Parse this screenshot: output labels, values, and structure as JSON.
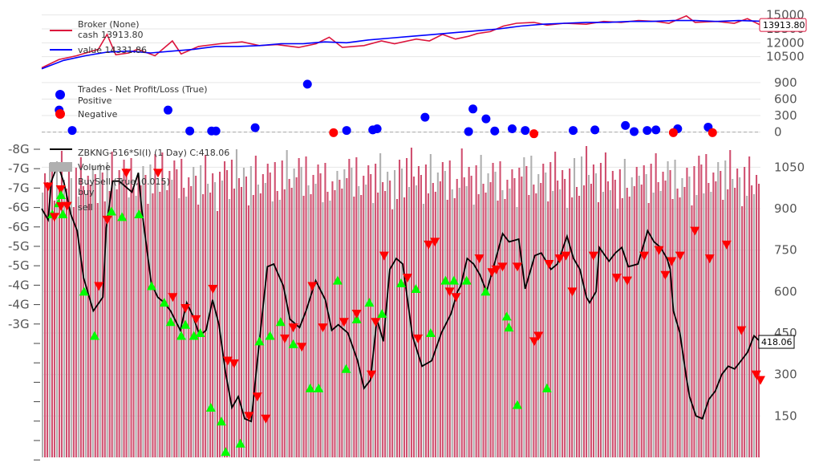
{
  "chart_data": [
    {
      "panel": "broker",
      "type": "line",
      "legend": [
        {
          "name": "Broker (None)",
          "detail": "cash 13913.80",
          "color": "#dc143c"
        },
        {
          "name": "value 14331.86",
          "color": "#0000ff"
        }
      ],
      "last_label": "13913.80",
      "overlap_label": "14331.86",
      "yticks": [
        "15000",
        "13500",
        "12000",
        "10500"
      ],
      "ylim": [
        9000,
        15400
      ],
      "series": [
        {
          "name": "cash",
          "color": "#dc143c",
          "points": [
            [
              0,
              9300
            ],
            [
              8,
              10200
            ],
            [
              16,
              10600
            ],
            [
              26,
              11300
            ],
            [
              30,
              12900
            ],
            [
              34,
              10700
            ],
            [
              40,
              10900
            ],
            [
              44,
              11300
            ],
            [
              52,
              10600
            ],
            [
              60,
              12200
            ],
            [
              64,
              10800
            ],
            [
              72,
              11600
            ],
            [
              82,
              11900
            ],
            [
              92,
              12100
            ],
            [
              100,
              11700
            ],
            [
              108,
              11800
            ],
            [
              118,
              11500
            ],
            [
              126,
              11900
            ],
            [
              132,
              12600
            ],
            [
              138,
              11500
            ],
            [
              148,
              11700
            ],
            [
              156,
              12200
            ],
            [
              162,
              11900
            ],
            [
              172,
              12400
            ],
            [
              178,
              12200
            ],
            [
              184,
              12900
            ],
            [
              190,
              12400
            ],
            [
              196,
              12700
            ],
            [
              200,
              13000
            ],
            [
              206,
              13200
            ],
            [
              212,
              13800
            ],
            [
              218,
              14100
            ],
            [
              226,
              14200
            ],
            [
              232,
              13900
            ],
            [
              240,
              14100
            ],
            [
              250,
              14000
            ],
            [
              258,
              14300
            ],
            [
              266,
              14200
            ],
            [
              274,
              14400
            ],
            [
              282,
              14300
            ],
            [
              288,
              14100
            ],
            [
              296,
              14900
            ],
            [
              300,
              14200
            ],
            [
              310,
              14300
            ],
            [
              318,
              14100
            ],
            [
              324,
              14600
            ],
            [
              330,
              13913.8
            ]
          ]
        },
        {
          "name": "value",
          "color": "#0000ff",
          "points": [
            [
              0,
              9200
            ],
            [
              10,
              10100
            ],
            [
              20,
              10600
            ],
            [
              30,
              11000
            ],
            [
              40,
              11100
            ],
            [
              50,
              10900
            ],
            [
              60,
              11100
            ],
            [
              70,
              11300
            ],
            [
              80,
              11600
            ],
            [
              90,
              11600
            ],
            [
              100,
              11700
            ],
            [
              110,
              11900
            ],
            [
              120,
              11900
            ],
            [
              130,
              12100
            ],
            [
              140,
              12000
            ],
            [
              150,
              12300
            ],
            [
              160,
              12500
            ],
            [
              170,
              12700
            ],
            [
              180,
              12900
            ],
            [
              190,
              13100
            ],
            [
              200,
              13300
            ],
            [
              210,
              13500
            ],
            [
              220,
              13800
            ],
            [
              230,
              14000
            ],
            [
              240,
              14100
            ],
            [
              250,
              14200
            ],
            [
              260,
              14200
            ],
            [
              270,
              14300
            ],
            [
              280,
              14300
            ],
            [
              290,
              14400
            ],
            [
              300,
              14400
            ],
            [
              310,
              14300
            ],
            [
              320,
              14400
            ],
            [
              330,
              14331.86
            ]
          ]
        }
      ]
    },
    {
      "panel": "trades",
      "type": "scatter",
      "legend_title": "Trades - Net Profit/Loss (True)",
      "legend": [
        {
          "name": "Positive",
          "color": "#0000ff"
        },
        {
          "name": "Negative",
          "color": "#ff0000"
        }
      ],
      "yticks": [
        "900",
        "600",
        "300",
        "0"
      ],
      "ylim": [
        -20,
        1000
      ],
      "positive": [
        [
          8,
          400
        ],
        [
          14,
          30
        ],
        [
          58,
          400
        ],
        [
          68,
          20
        ],
        [
          78,
          20
        ],
        [
          80,
          20
        ],
        [
          98,
          80
        ],
        [
          122,
          870
        ],
        [
          140,
          30
        ],
        [
          152,
          40
        ],
        [
          154,
          60
        ],
        [
          176,
          270
        ],
        [
          196,
          10
        ],
        [
          198,
          420
        ],
        [
          204,
          240
        ],
        [
          208,
          20
        ],
        [
          216,
          60
        ],
        [
          222,
          30
        ],
        [
          244,
          30
        ],
        [
          254,
          40
        ],
        [
          268,
          120
        ],
        [
          272,
          10
        ],
        [
          278,
          30
        ],
        [
          282,
          40
        ],
        [
          292,
          60
        ],
        [
          306,
          90
        ]
      ],
      "negative": [
        [
          134,
          -10
        ],
        [
          226,
          -30
        ],
        [
          290,
          -10
        ],
        [
          308,
          -10
        ]
      ]
    },
    {
      "panel": "price",
      "type": "line",
      "legend": [
        {
          "name": "ZBKNG-516*SI(I) (1 Day) C:418.06",
          "color": "#000000"
        },
        {
          "name": "Volume",
          "color": "#b0b0b0"
        },
        {
          "name": "BuySell (True, 0.015)",
          "color": "#000000"
        },
        {
          "name": "buy",
          "color": "#00ff00"
        },
        {
          "name": "sell",
          "color": "#ff0000"
        }
      ],
      "last_label": "418.06",
      "yticks": [
        "1050",
        "900",
        "750",
        "600",
        "450",
        "300",
        "150"
      ],
      "ylim": [
        0,
        1150
      ],
      "volume_ticks": [
        "-8G",
        "-7G",
        "-7G",
        "-6G",
        "-6G",
        "-5G",
        "-5G",
        "-4G",
        "-4G",
        "-3G",
        "",
        "",
        "",
        "",
        "",
        "",
        ""
      ],
      "close": [
        [
          0,
          900
        ],
        [
          4,
          860
        ],
        [
          6,
          1000
        ],
        [
          10,
          1060
        ],
        [
          14,
          990
        ],
        [
          18,
          880
        ],
        [
          22,
          820
        ],
        [
          26,
          650
        ],
        [
          32,
          530
        ],
        [
          38,
          580
        ],
        [
          40,
          830
        ],
        [
          44,
          1000
        ],
        [
          48,
          1000
        ],
        [
          56,
          960
        ],
        [
          60,
          1030
        ],
        [
          62,
          900
        ],
        [
          68,
          630
        ],
        [
          72,
          580
        ],
        [
          76,
          560
        ],
        [
          80,
          530
        ],
        [
          86,
          460
        ],
        [
          90,
          560
        ],
        [
          94,
          510
        ],
        [
          98,
          440
        ],
        [
          102,
          460
        ],
        [
          106,
          570
        ],
        [
          110,
          480
        ],
        [
          114,
          310
        ],
        [
          118,
          180
        ],
        [
          122,
          220
        ],
        [
          126,
          140
        ],
        [
          130,
          130
        ],
        [
          134,
          360
        ],
        [
          138,
          580
        ],
        [
          140,
          690
        ],
        [
          144,
          700
        ],
        [
          150,
          620
        ],
        [
          154,
          500
        ],
        [
          160,
          470
        ],
        [
          164,
          530
        ],
        [
          170,
          640
        ],
        [
          176,
          570
        ],
        [
          180,
          460
        ],
        [
          184,
          480
        ],
        [
          190,
          450
        ],
        [
          196,
          350
        ],
        [
          200,
          250
        ],
        [
          204,
          280
        ],
        [
          208,
          500
        ],
        [
          212,
          420
        ],
        [
          216,
          680
        ],
        [
          220,
          720
        ],
        [
          224,
          700
        ],
        [
          230,
          440
        ],
        [
          236,
          330
        ],
        [
          242,
          350
        ],
        [
          248,
          450
        ],
        [
          254,
          520
        ],
        [
          258,
          600
        ],
        [
          260,
          620
        ],
        [
          264,
          720
        ],
        [
          268,
          700
        ],
        [
          272,
          660
        ],
        [
          276,
          600
        ],
        [
          280,
          680
        ],
        [
          286,
          810
        ],
        [
          290,
          780
        ],
        [
          296,
          790
        ],
        [
          300,
          610
        ],
        [
          306,
          730
        ],
        [
          310,
          740
        ],
        [
          316,
          680
        ],
        [
          320,
          700
        ],
        [
          326,
          800
        ],
        [
          330,
          720
        ],
        [
          334,
          680
        ],
        [
          338,
          580
        ],
        [
          340,
          560
        ],
        [
          344,
          600
        ],
        [
          346,
          760
        ],
        [
          352,
          710
        ],
        [
          356,
          740
        ],
        [
          360,
          760
        ],
        [
          364,
          690
        ],
        [
          370,
          700
        ],
        [
          376,
          820
        ],
        [
          380,
          780
        ],
        [
          384,
          760
        ],
        [
          388,
          720
        ],
        [
          390,
          680
        ],
        [
          392,
          530
        ],
        [
          396,
          450
        ],
        [
          400,
          290
        ],
        [
          402,
          220
        ],
        [
          406,
          150
        ],
        [
          410,
          140
        ],
        [
          414,
          210
        ],
        [
          418,
          240
        ],
        [
          422,
          300
        ],
        [
          426,
          330
        ],
        [
          430,
          320
        ],
        [
          434,
          350
        ],
        [
          438,
          380
        ],
        [
          442,
          440
        ],
        [
          446,
          418.06
        ]
      ],
      "buys": [
        [
          10,
          880
        ],
        [
          16,
          920
        ],
        [
          20,
          880
        ],
        [
          40,
          600
        ],
        [
          50,
          440
        ],
        [
          66,
          890
        ],
        [
          76,
          870
        ],
        [
          92,
          880
        ],
        [
          104,
          620
        ],
        [
          116,
          560
        ],
        [
          122,
          490
        ],
        [
          132,
          440
        ],
        [
          136,
          480
        ],
        [
          144,
          440
        ],
        [
          150,
          450
        ],
        [
          160,
          180
        ],
        [
          170,
          130
        ],
        [
          174,
          20
        ],
        [
          188,
          50
        ],
        [
          206,
          420
        ],
        [
          216,
          440
        ],
        [
          226,
          490
        ],
        [
          238,
          410
        ],
        [
          254,
          250
        ],
        [
          262,
          250
        ],
        [
          280,
          640
        ],
        [
          288,
          320
        ],
        [
          298,
          500
        ],
        [
          310,
          560
        ],
        [
          322,
          520
        ],
        [
          340,
          630
        ],
        [
          354,
          610
        ],
        [
          368,
          450
        ],
        [
          382,
          640
        ],
        [
          390,
          640
        ],
        [
          402,
          640
        ],
        [
          420,
          600
        ],
        [
          440,
          510
        ],
        [
          442,
          470
        ],
        [
          450,
          190
        ],
        [
          478,
          250
        ]
      ],
      "sells": [
        [
          6,
          980
        ],
        [
          12,
          870
        ],
        [
          18,
          970
        ],
        [
          24,
          910
        ],
        [
          54,
          620
        ],
        [
          62,
          860
        ],
        [
          80,
          1030
        ],
        [
          110,
          1030
        ],
        [
          124,
          580
        ],
        [
          136,
          540
        ],
        [
          146,
          500
        ],
        [
          162,
          610
        ],
        [
          176,
          350
        ],
        [
          182,
          340
        ],
        [
          196,
          150
        ],
        [
          204,
          220
        ],
        [
          212,
          140
        ],
        [
          230,
          430
        ],
        [
          238,
          470
        ],
        [
          246,
          400
        ],
        [
          256,
          620
        ],
        [
          266,
          470
        ],
        [
          286,
          490
        ],
        [
          298,
          520
        ],
        [
          312,
          300
        ],
        [
          316,
          490
        ],
        [
          324,
          730
        ],
        [
          346,
          650
        ],
        [
          356,
          430
        ],
        [
          366,
          770
        ],
        [
          372,
          780
        ],
        [
          386,
          600
        ],
        [
          392,
          580
        ],
        [
          414,
          720
        ],
        [
          426,
          670
        ],
        [
          430,
          680
        ],
        [
          436,
          690
        ],
        [
          450,
          690
        ],
        [
          466,
          420
        ],
        [
          470,
          440
        ],
        [
          480,
          700
        ],
        [
          490,
          720
        ],
        [
          496,
          730
        ],
        [
          502,
          600
        ],
        [
          522,
          730
        ],
        [
          544,
          650
        ],
        [
          554,
          640
        ],
        [
          570,
          730
        ],
        [
          584,
          750
        ],
        [
          590,
          660
        ],
        [
          596,
          710
        ],
        [
          604,
          730
        ],
        [
          618,
          820
        ],
        [
          632,
          720
        ],
        [
          648,
          770
        ],
        [
          662,
          460
        ],
        [
          676,
          300
        ],
        [
          680,
          280
        ]
      ]
    }
  ]
}
